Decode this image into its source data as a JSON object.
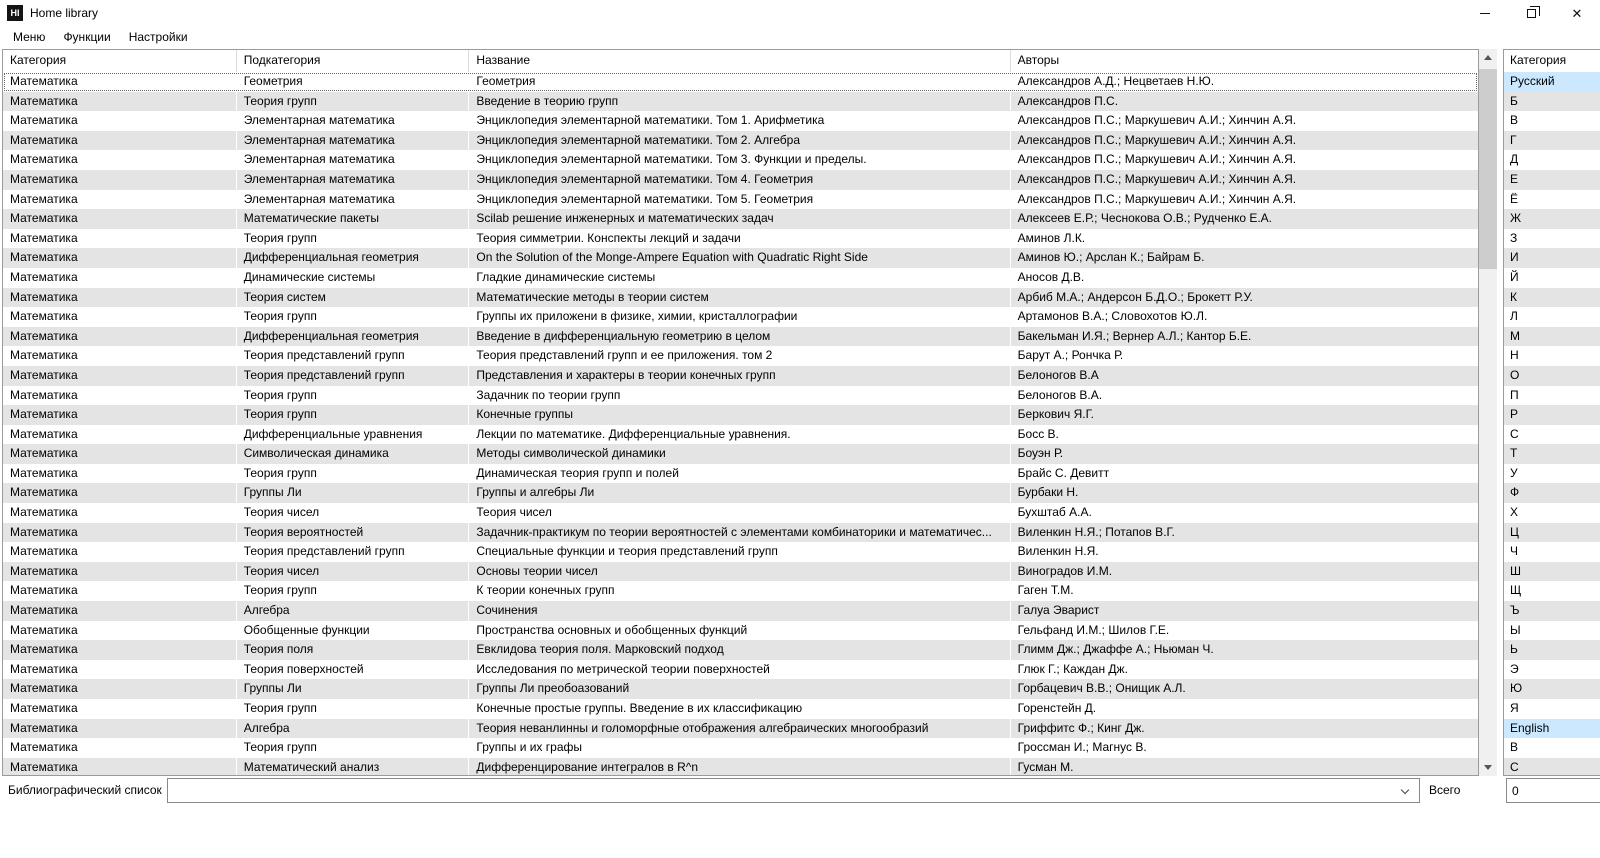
{
  "window": {
    "title": "Home library",
    "icon_text": "HI"
  },
  "menu": {
    "items": [
      "Меню",
      "Функции",
      "Настройки"
    ]
  },
  "table": {
    "columns": [
      "Категория",
      "Подкатегория",
      "Название",
      "Авторы"
    ],
    "focused_row": 0,
    "rows": [
      [
        "Математика",
        "Геометрия",
        "Геометрия",
        "Александров А.Д.; Нецветаев Н.Ю."
      ],
      [
        "Математика",
        "Теория групп",
        "Введение в теорию групп",
        "Александров П.С."
      ],
      [
        "Математика",
        "Элементарная математика",
        "Энциклопедия элементарной математики. Том 1. Арифметика",
        "Александров П.С.; Маркушевич А.И.; Хинчин А.Я."
      ],
      [
        "Математика",
        "Элементарная математика",
        "Энциклопедия элементарной математики. Том 2. Алгебра",
        "Александров П.С.; Маркушевич А.И.; Хинчин А.Я."
      ],
      [
        "Математика",
        "Элементарная математика",
        "Энциклопедия элементарной математики. Том 3. Функции и пределы.",
        "Александров П.С.; Маркушевич А.И.; Хинчин А.Я."
      ],
      [
        "Математика",
        "Элементарная математика",
        "Энциклопедия элементарной математики. Том 4. Геометрия",
        "Александров П.С.; Маркушевич А.И.; Хинчин А.Я."
      ],
      [
        "Математика",
        "Элементарная математика",
        "Энциклопедия элементарной математики. Том 5. Геометрия",
        "Александров П.С.; Маркушевич А.И.; Хинчин А.Я."
      ],
      [
        "Математика",
        "Математические пакеты",
        "Scilab решение инженерных и математических задач",
        "Алексеев Е.Р.; Чеснокова О.В.; Рудченко Е.А."
      ],
      [
        "Математика",
        "Теория групп",
        "Теория симметрии. Конспекты лекций и задачи",
        "Аминов Л.К."
      ],
      [
        "Математика",
        "Дифференциальная геометрия",
        "On the Solution of the Monge-Ampere Equation with Quadratic Right Side",
        "Аминов Ю.; Арслан К.; Байрам Б."
      ],
      [
        "Математика",
        "Динамические системы",
        "Гладкие динамические системы",
        "Аносов Д.В."
      ],
      [
        "Математика",
        "Теория систем",
        "Математические методы в теории систем",
        "Арбиб М.А.; Андерсон Б.Д.О.; Брокетт Р.У."
      ],
      [
        "Математика",
        "Теория групп",
        "Группы их приложени в физике, химии, кристаллографии",
        "Артамонов В.А.; Словохотов Ю.Л."
      ],
      [
        "Математика",
        "Дифференциальная геометрия",
        "Введение в дифференциальную геометрию в целом",
        "Бакельман И.Я.; Вернер А.Л.; Кантор Б.Е."
      ],
      [
        "Математика",
        "Теория представлений групп",
        "Теория представлений групп и ее приложения. том 2",
        "Барут А.; Рончка Р."
      ],
      [
        "Математика",
        "Теория представлений групп",
        "Представления и характеры в теории конечных групп",
        "Белоногов В.А"
      ],
      [
        "Математика",
        "Теория групп",
        "Задачник по теории групп",
        "Белоногов В.А."
      ],
      [
        "Математика",
        "Теория групп",
        "Конечные группы",
        "Беркович Я.Г."
      ],
      [
        "Математика",
        "Дифференциальные уравнения",
        "Лекции по математике. Дифференциальные уравнения.",
        "Босс В."
      ],
      [
        "Математика",
        "Символическая динамика",
        "Методы символической динамики",
        "Боуэн Р."
      ],
      [
        "Математика",
        "Теория групп",
        "Динамическая теория групп и полей",
        "Брайс С. Девитт"
      ],
      [
        "Математика",
        "Группы Ли",
        "Группы и алгебры Ли",
        "Бурбаки Н."
      ],
      [
        "Математика",
        "Теория чисел",
        "Теория чисел",
        "Бухштаб А.А."
      ],
      [
        "Математика",
        "Теория вероятностей",
        "Задачник-практикум по теории вероятностей с элементами комбинаторики и математичес...",
        "Виленкин Н.Я.; Потапов В.Г."
      ],
      [
        "Математика",
        "Теория представлений групп",
        "Специальные функции и теория представлений групп",
        "Виленкин Н.Я."
      ],
      [
        "Математика",
        "Теория чисел",
        "Основы теории чисел",
        "Виноградов И.М."
      ],
      [
        "Математика",
        "Теория групп",
        "К теории конечных групп",
        "Гаген Т.М."
      ],
      [
        "Математика",
        "Алгебра",
        "Сочинения",
        "Галуа Эварист"
      ],
      [
        "Математика",
        "Обобщенные функции",
        "Пространства основных и обобщенных функций",
        "Гельфанд И.М.; Шилов Г.Е."
      ],
      [
        "Математика",
        "Теория поля",
        "Евклидова теория поля. Марковский подход",
        "Глимм Дж.; Джаффе А.; Ньюман Ч."
      ],
      [
        "Математика",
        "Теория поверхностей",
        "Исследования по метрической теории поверхностей",
        "Глюк Г.; Каждан Дж."
      ],
      [
        "Математика",
        "Группы Ли",
        "Группы Ли преобоазований",
        "Горбацевич В.В.; Онищик А.Л."
      ],
      [
        "Математика",
        "Теория групп",
        "Конечные простые группы. Введение в их классификацию",
        "Горенстейн Д."
      ],
      [
        "Математика",
        "Алгебра",
        "Теория неванлинны и голоморфные отображения алгебраических многообразий",
        "Гриффитс Ф.; Кинг Дж."
      ],
      [
        "Математика",
        "Теория групп",
        "Группы и их графы",
        "Гроссман И.; Магнус В."
      ],
      [
        "Математика",
        "Математический анализ",
        "Дифференцирование интегралов в R^n",
        "Гусман М."
      ]
    ]
  },
  "sidebar": {
    "header": "Категория",
    "items": [
      "Русский",
      "Б",
      "В",
      "Г",
      "Д",
      "Е",
      "Ё",
      "Ж",
      "З",
      "И",
      "Й",
      "К",
      "Л",
      "М",
      "Н",
      "О",
      "П",
      "Р",
      "С",
      "Т",
      "У",
      "Ф",
      "Х",
      "Ц",
      "Ч",
      "Ш",
      "Щ",
      "Ъ",
      "Ы",
      "Ь",
      "Э",
      "Ю",
      "Я",
      "English",
      "B",
      "C"
    ],
    "selected_indexes": [
      0,
      33
    ]
  },
  "footer": {
    "biblio_label": "Библиографический список",
    "combo_value": "",
    "total_label": "Всего",
    "total_value": "0"
  },
  "colors": {
    "row_alt": "#e4e4e4",
    "selected_item": "#cce8ff",
    "border": "#9b9b9b",
    "scroll_track": "#f0f0f0",
    "scroll_thumb": "#cdcdcd"
  }
}
